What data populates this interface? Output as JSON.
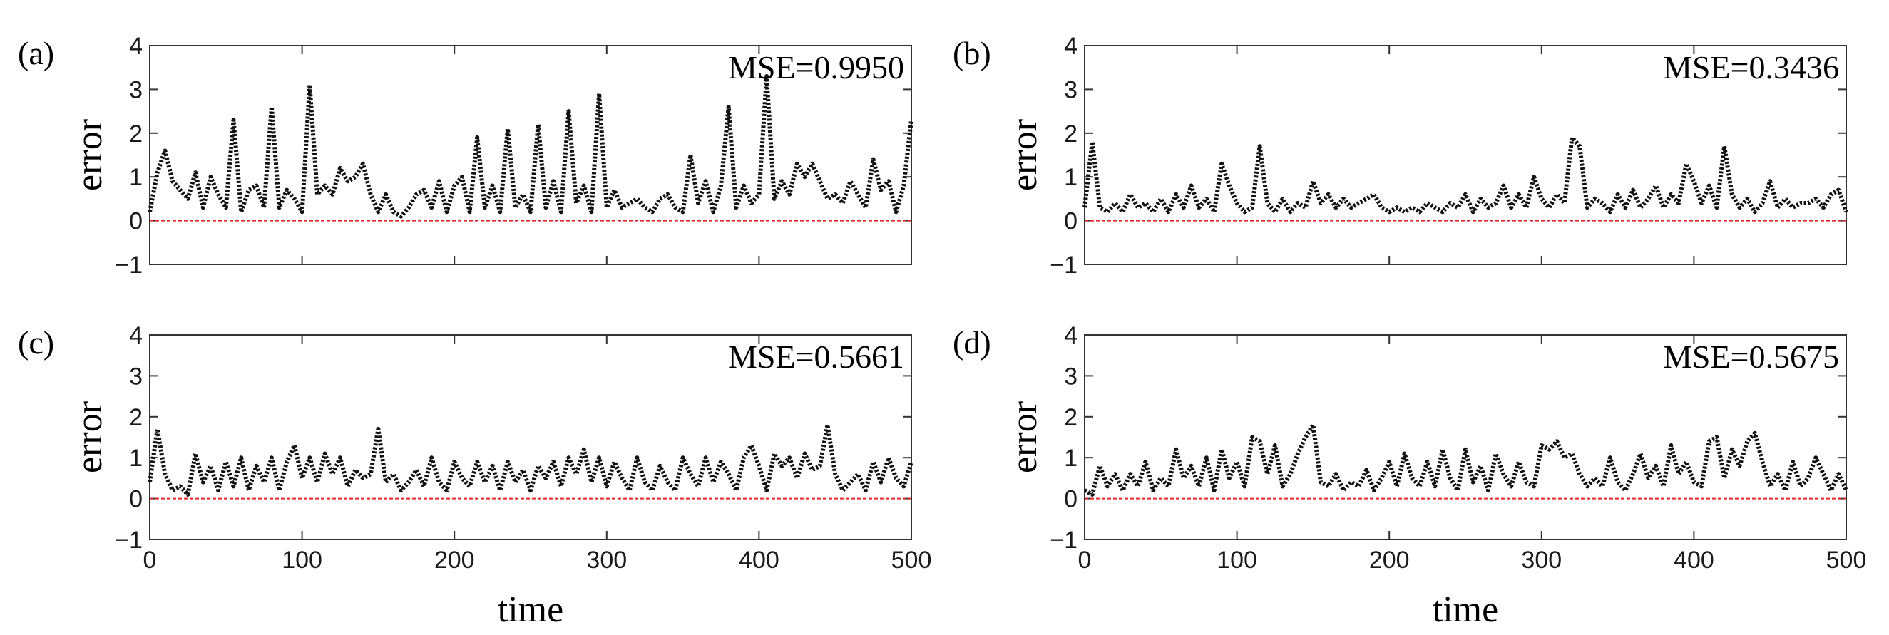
{
  "chart_data": [
    {
      "type": "line",
      "panel": "(a)",
      "annotation": "MSE=0.9950",
      "ylabel": "error",
      "xlabel": "",
      "xlim": [
        0,
        500
      ],
      "ylim": [
        -1,
        4
      ],
      "yticks": [
        "4",
        "3",
        "2",
        "1",
        "0",
        "−1"
      ],
      "xticks": [],
      "baseline": 0,
      "baseline_color": "#e8262b",
      "series": [
        {
          "name": "error",
          "style": "dotted-black",
          "x": [
            0,
            5,
            10,
            15,
            20,
            25,
            30,
            35,
            40,
            45,
            50,
            55,
            60,
            65,
            70,
            75,
            80,
            85,
            90,
            95,
            100,
            105,
            110,
            115,
            120,
            125,
            130,
            135,
            140,
            145,
            150,
            155,
            160,
            165,
            170,
            175,
            180,
            185,
            190,
            195,
            200,
            205,
            210,
            215,
            220,
            225,
            230,
            235,
            240,
            245,
            250,
            255,
            260,
            265,
            270,
            275,
            280,
            285,
            290,
            295,
            300,
            305,
            310,
            315,
            320,
            325,
            330,
            335,
            340,
            345,
            350,
            355,
            360,
            365,
            370,
            375,
            380,
            385,
            390,
            395,
            400,
            405,
            410,
            415,
            420,
            425,
            430,
            435,
            440,
            445,
            450,
            455,
            460,
            465,
            470,
            475,
            480,
            485,
            490,
            495,
            500
          ],
          "values": [
            0.2,
            1.1,
            1.6,
            0.9,
            0.7,
            0.5,
            1.1,
            0.3,
            1.0,
            0.6,
            0.3,
            2.3,
            0.2,
            0.7,
            0.8,
            0.3,
            2.6,
            0.3,
            0.7,
            0.5,
            0.2,
            3.1,
            0.6,
            0.8,
            0.6,
            1.2,
            0.9,
            1.0,
            1.3,
            0.6,
            0.2,
            0.6,
            0.2,
            0.1,
            0.3,
            0.6,
            0.7,
            0.3,
            0.9,
            0.2,
            0.8,
            1.0,
            0.2,
            1.9,
            0.3,
            0.8,
            0.2,
            2.1,
            0.3,
            0.6,
            0.2,
            2.2,
            0.3,
            0.9,
            0.2,
            2.5,
            0.4,
            0.8,
            0.2,
            2.9,
            0.3,
            0.7,
            0.3,
            0.4,
            0.5,
            0.3,
            0.2,
            0.5,
            0.6,
            0.3,
            0.2,
            1.5,
            0.4,
            0.9,
            0.2,
            0.8,
            2.6,
            0.3,
            0.8,
            0.4,
            0.6,
            3.3,
            0.5,
            0.9,
            0.6,
            1.3,
            1.0,
            1.3,
            0.9,
            0.5,
            0.6,
            0.4,
            0.9,
            0.6,
            0.3,
            1.4,
            0.7,
            0.9,
            0.2,
            0.8,
            2.3
          ]
        }
      ]
    },
    {
      "type": "line",
      "panel": "(b)",
      "annotation": "MSE=0.3436",
      "ylabel": "error",
      "xlabel": "",
      "xlim": [
        0,
        500
      ],
      "ylim": [
        -1,
        4
      ],
      "yticks": [
        "4",
        "3",
        "2",
        "1",
        "0",
        "−1"
      ],
      "xticks": [],
      "baseline": 0,
      "baseline_color": "#e8262b",
      "series": [
        {
          "name": "error",
          "style": "dotted-black",
          "x": [
            0,
            5,
            10,
            15,
            20,
            25,
            30,
            35,
            40,
            45,
            50,
            55,
            60,
            65,
            70,
            75,
            80,
            85,
            90,
            95,
            100,
            105,
            110,
            115,
            120,
            125,
            130,
            135,
            140,
            145,
            150,
            155,
            160,
            165,
            170,
            175,
            180,
            185,
            190,
            195,
            200,
            205,
            210,
            215,
            220,
            225,
            230,
            235,
            240,
            245,
            250,
            255,
            260,
            265,
            270,
            275,
            280,
            285,
            290,
            295,
            300,
            305,
            310,
            315,
            320,
            325,
            330,
            335,
            340,
            345,
            350,
            355,
            360,
            365,
            370,
            375,
            380,
            385,
            390,
            395,
            400,
            405,
            410,
            415,
            420,
            425,
            430,
            435,
            440,
            445,
            450,
            455,
            460,
            465,
            470,
            475,
            480,
            485,
            490,
            495,
            500
          ],
          "values": [
            0.3,
            1.8,
            0.3,
            0.2,
            0.4,
            0.2,
            0.6,
            0.3,
            0.4,
            0.2,
            0.5,
            0.2,
            0.6,
            0.3,
            0.8,
            0.3,
            0.5,
            0.2,
            1.3,
            0.8,
            0.4,
            0.2,
            0.3,
            1.7,
            0.4,
            0.2,
            0.5,
            0.2,
            0.4,
            0.3,
            0.9,
            0.4,
            0.6,
            0.3,
            0.5,
            0.3,
            0.4,
            0.5,
            0.6,
            0.3,
            0.2,
            0.3,
            0.2,
            0.3,
            0.2,
            0.4,
            0.3,
            0.2,
            0.4,
            0.3,
            0.6,
            0.2,
            0.5,
            0.3,
            0.4,
            0.8,
            0.3,
            0.6,
            0.3,
            1.0,
            0.5,
            0.3,
            0.6,
            0.4,
            1.9,
            1.7,
            0.3,
            0.5,
            0.4,
            0.2,
            0.6,
            0.3,
            0.7,
            0.3,
            0.5,
            0.8,
            0.3,
            0.6,
            0.4,
            1.3,
            0.9,
            0.4,
            0.8,
            0.3,
            1.7,
            0.6,
            0.3,
            0.5,
            0.2,
            0.4,
            0.9,
            0.3,
            0.5,
            0.3,
            0.4,
            0.4,
            0.5,
            0.3,
            0.6,
            0.7,
            0.2
          ]
        }
      ]
    },
    {
      "type": "line",
      "panel": "(c)",
      "annotation": "MSE=0.5661",
      "ylabel": "error",
      "xlabel": "time",
      "xlim": [
        0,
        500
      ],
      "ylim": [
        -1,
        4
      ],
      "yticks": [
        "4",
        "3",
        "2",
        "1",
        "0",
        "−1"
      ],
      "xticks": [
        "0",
        "100",
        "200",
        "300",
        "400",
        "500"
      ],
      "baseline": 0,
      "baseline_color": "#e8262b",
      "series": [
        {
          "name": "error",
          "style": "dotted-black",
          "x": [
            0,
            5,
            10,
            15,
            20,
            25,
            30,
            35,
            40,
            45,
            50,
            55,
            60,
            65,
            70,
            75,
            80,
            85,
            90,
            95,
            100,
            105,
            110,
            115,
            120,
            125,
            130,
            135,
            140,
            145,
            150,
            155,
            160,
            165,
            170,
            175,
            180,
            185,
            190,
            195,
            200,
            205,
            210,
            215,
            220,
            225,
            230,
            235,
            240,
            245,
            250,
            255,
            260,
            265,
            270,
            275,
            280,
            285,
            290,
            295,
            300,
            305,
            310,
            315,
            320,
            325,
            330,
            335,
            340,
            345,
            350,
            355,
            360,
            365,
            370,
            375,
            380,
            385,
            390,
            395,
            400,
            405,
            410,
            415,
            420,
            425,
            430,
            435,
            440,
            445,
            450,
            455,
            460,
            465,
            470,
            475,
            480,
            485,
            490,
            495,
            500
          ],
          "values": [
            0.4,
            1.7,
            0.6,
            0.2,
            0.3,
            0.1,
            1.1,
            0.4,
            0.8,
            0.2,
            0.9,
            0.3,
            1.0,
            0.2,
            0.8,
            0.4,
            1.0,
            0.2,
            0.9,
            1.3,
            0.5,
            1.0,
            0.4,
            1.1,
            0.6,
            1.0,
            0.3,
            0.7,
            0.5,
            0.6,
            1.7,
            0.4,
            0.6,
            0.2,
            0.4,
            0.7,
            0.3,
            1.0,
            0.4,
            0.2,
            0.9,
            0.5,
            0.3,
            0.9,
            0.4,
            0.8,
            0.2,
            0.9,
            0.4,
            0.7,
            0.2,
            0.8,
            0.5,
            0.9,
            0.3,
            1.0,
            0.6,
            1.2,
            0.4,
            1.0,
            0.3,
            0.9,
            0.5,
            0.2,
            1.0,
            0.4,
            0.2,
            0.8,
            0.4,
            0.2,
            1.0,
            0.6,
            0.3,
            1.0,
            0.4,
            0.9,
            0.6,
            0.2,
            1.0,
            1.3,
            0.8,
            0.2,
            1.1,
            0.8,
            1.0,
            0.5,
            1.1,
            0.7,
            0.8,
            1.8,
            0.6,
            0.2,
            0.4,
            0.6,
            0.2,
            0.9,
            0.4,
            1.0,
            0.5,
            0.3,
            0.9
          ]
        }
      ]
    },
    {
      "type": "line",
      "panel": "(d)",
      "annotation": "MSE=0.5675",
      "ylabel": "error",
      "xlabel": "time",
      "xlim": [
        0,
        500
      ],
      "ylim": [
        -1,
        4
      ],
      "yticks": [
        "4",
        "3",
        "2",
        "1",
        "0",
        "−1"
      ],
      "xticks": [
        "0",
        "100",
        "200",
        "300",
        "400",
        "500"
      ],
      "baseline": 0,
      "baseline_color": "#e8262b",
      "series": [
        {
          "name": "error",
          "style": "dotted-black",
          "x": [
            0,
            5,
            10,
            15,
            20,
            25,
            30,
            35,
            40,
            45,
            50,
            55,
            60,
            65,
            70,
            75,
            80,
            85,
            90,
            95,
            100,
            105,
            110,
            115,
            120,
            125,
            130,
            135,
            140,
            145,
            150,
            155,
            160,
            165,
            170,
            175,
            180,
            185,
            190,
            195,
            200,
            205,
            210,
            215,
            220,
            225,
            230,
            235,
            240,
            245,
            250,
            255,
            260,
            265,
            270,
            275,
            280,
            285,
            290,
            295,
            300,
            305,
            310,
            315,
            320,
            325,
            330,
            335,
            340,
            345,
            350,
            355,
            360,
            365,
            370,
            375,
            380,
            385,
            390,
            395,
            400,
            405,
            410,
            415,
            420,
            425,
            430,
            435,
            440,
            445,
            450,
            455,
            460,
            465,
            470,
            475,
            480,
            485,
            490,
            495,
            500
          ],
          "values": [
            0.2,
            0.1,
            0.8,
            0.3,
            0.6,
            0.2,
            0.6,
            0.3,
            0.9,
            0.2,
            0.5,
            0.3,
            1.2,
            0.5,
            0.8,
            0.3,
            1.0,
            0.2,
            1.2,
            0.5,
            0.9,
            0.3,
            1.5,
            1.4,
            0.6,
            1.3,
            0.3,
            0.6,
            1.1,
            1.5,
            1.8,
            0.4,
            0.3,
            0.6,
            0.2,
            0.4,
            0.3,
            0.7,
            0.2,
            0.5,
            0.9,
            0.3,
            1.1,
            0.5,
            0.3,
            0.9,
            0.3,
            1.2,
            0.5,
            0.2,
            1.2,
            0.4,
            0.8,
            0.2,
            1.1,
            0.6,
            0.3,
            0.9,
            0.4,
            0.3,
            1.3,
            1.2,
            1.4,
            1.0,
            1.1,
            0.6,
            0.3,
            0.5,
            0.3,
            1.0,
            0.4,
            0.2,
            0.6,
            1.1,
            0.5,
            0.8,
            0.3,
            1.3,
            0.6,
            0.9,
            0.4,
            0.3,
            1.4,
            1.5,
            0.5,
            1.2,
            0.8,
            1.4,
            1.6,
            0.9,
            0.3,
            0.6,
            0.2,
            0.9,
            0.3,
            0.5,
            1.0,
            0.6,
            0.2,
            0.6,
            0.2
          ]
        }
      ]
    }
  ]
}
